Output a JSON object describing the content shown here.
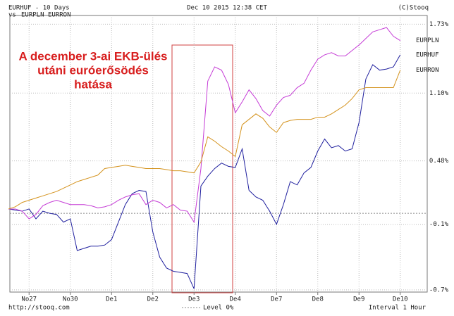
{
  "chart_data": {
    "type": "line",
    "title": "EURHUF - 10 Days",
    "vs_label": "vs",
    "timestamp": "Dec 10 2015 12:38 CET",
    "copyright": "(C)Stooq",
    "source": "http://stooq.com",
    "interval": "Interval 1 Hour",
    "level_label": "Level 0%",
    "level": 0,
    "annotation": [
      "A december 3-ai EKB-ülés",
      "utáni euróerősödés",
      "hatása"
    ],
    "categories": [
      null,
      null,
      null,
      "No27",
      null,
      null,
      null,
      null,
      null,
      "No30",
      null,
      null,
      null,
      null,
      null,
      "De1",
      null,
      null,
      null,
      null,
      null,
      "De2",
      null,
      null,
      null,
      null,
      null,
      "De3",
      null,
      null,
      null,
      null,
      null,
      "De4",
      null,
      null,
      null,
      null,
      null,
      "De7",
      null,
      null,
      null,
      null,
      null,
      "De8",
      null,
      null,
      null,
      null,
      null,
      "De9",
      null,
      null,
      null,
      null,
      null,
      "De10"
    ],
    "series": [
      {
        "name": "EURHUF",
        "color": "#1f1f9e",
        "values": [
          0.04,
          0.03,
          0.02,
          0.04,
          -0.05,
          0.02,
          0,
          -0.01,
          -0.08,
          -0.05,
          -0.34,
          -0.32,
          -0.3,
          -0.3,
          -0.29,
          -0.24,
          -0.08,
          0.08,
          0.18,
          0.21,
          0.2,
          -0.17,
          -0.4,
          -0.5,
          -0.53,
          -0.54,
          -0.55,
          -0.69,
          0.25,
          0.34,
          0.41,
          0.46,
          0.43,
          0.42,
          0.59,
          0.21,
          0.15,
          0.12,
          0.02,
          -0.1,
          0.08,
          0.29,
          0.26,
          0.37,
          0.42,
          0.57,
          0.68,
          0.6,
          0.62,
          0.57,
          0.59,
          0.83,
          1.23,
          1.36,
          1.31,
          1.32,
          1.34,
          1.45
        ]
      },
      {
        "name": "EURPLN",
        "color": "#c53cd6",
        "values": [
          0.04,
          0.04,
          0.02,
          -0.05,
          -0.01,
          0.07,
          0.1,
          0.12,
          0.1,
          0.08,
          0.08,
          0.08,
          0.07,
          0.05,
          0.06,
          0.08,
          0.12,
          0.15,
          0.17,
          0.18,
          0.08,
          0.12,
          0.1,
          0.05,
          0.08,
          0.03,
          0.02,
          -0.08,
          0.41,
          1.21,
          1.34,
          1.31,
          1.18,
          0.92,
          1.02,
          1.13,
          1.05,
          0.94,
          0.89,
          0.99,
          1.06,
          1.08,
          1.15,
          1.19,
          1.31,
          1.41,
          1.45,
          1.47,
          1.44,
          1.44,
          1.49,
          1.54,
          1.6,
          1.66,
          1.68,
          1.7,
          1.62,
          1.58
        ]
      },
      {
        "name": "EURRON",
        "color": "#d4921c",
        "values": [
          0.04,
          0.06,
          0.1,
          0.12,
          0.14,
          0.16,
          0.18,
          0.2,
          0.23,
          0.26,
          0.29,
          0.31,
          0.33,
          0.35,
          0.41,
          0.42,
          0.43,
          0.44,
          0.43,
          0.42,
          0.41,
          0.41,
          0.41,
          0.4,
          0.39,
          0.39,
          0.38,
          0.37,
          0.47,
          0.7,
          0.66,
          0.61,
          0.57,
          0.52,
          0.81,
          0.86,
          0.91,
          0.87,
          0.79,
          0.74,
          0.83,
          0.85,
          0.86,
          0.86,
          0.86,
          0.88,
          0.88,
          0.91,
          0.95,
          0.99,
          1.05,
          1.13,
          1.15,
          1.15,
          1.15,
          1.15,
          1.15,
          1.31
        ]
      }
    ],
    "ylim": [
      -0.72,
      1.81
    ],
    "yticks": [
      {
        "value": 1.73,
        "label": "1.73%"
      },
      {
        "value": 1.1,
        "label": "1.10%"
      },
      {
        "value": 0.48,
        "label": "0.48%"
      },
      {
        "value": -0.1,
        "label": "-0.1%"
      },
      {
        "value": -0.7,
        "label": "-0.7%"
      }
    ],
    "grid": true
  }
}
